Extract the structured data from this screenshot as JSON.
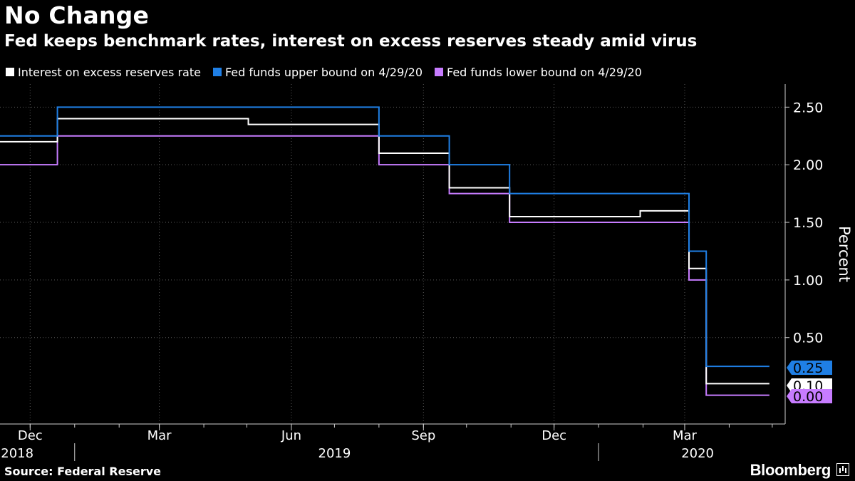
{
  "header": {
    "title": "No Change",
    "subtitle": "Fed keeps benchmark rates, interest on excess reserves steady amid virus"
  },
  "footer": {
    "source": "Source: Federal Reserve",
    "brand": "Bloomberg"
  },
  "chart_data": {
    "type": "line",
    "line_style": "step",
    "title": "No Change",
    "subtitle": "Fed keeps benchmark rates, interest on excess reserves steady amid virus",
    "ylabel": "Percent",
    "xlabel": "",
    "ylim": [
      -0.25,
      2.7
    ],
    "xlim": [
      "2018-11-10",
      "2020-05-10"
    ],
    "yticks": [
      0.5,
      1.0,
      1.5,
      2.0,
      2.5
    ],
    "ytick_labels": [
      "0.50",
      "1.00",
      "1.50",
      "2.00",
      "2.50"
    ],
    "month_ticks": [
      {
        "label": "Dec",
        "date": "2018-12-01"
      },
      {
        "label": "Mar",
        "date": "2019-03-01"
      },
      {
        "label": "Jun",
        "date": "2019-06-01"
      },
      {
        "label": "Sep",
        "date": "2019-09-01"
      },
      {
        "label": "Dec",
        "date": "2019-12-01"
      },
      {
        "label": "Mar",
        "date": "2020-03-01"
      }
    ],
    "year_labels": [
      {
        "label": "2018",
        "date": "2018-11-22"
      },
      {
        "label": "2019",
        "date": "2019-07-01"
      },
      {
        "label": "2020",
        "date": "2020-03-10"
      }
    ],
    "year_dividers": [
      "2019-01-01",
      "2020-01-01"
    ],
    "grid": true,
    "legend_position": "top-left",
    "series": [
      {
        "name": "Interest on excess reserves rate",
        "color": "#ffffff",
        "last_value_label": "0.10",
        "points": [
          {
            "x": "2018-11-10",
            "y": 2.2
          },
          {
            "x": "2018-12-20",
            "y": 2.4
          },
          {
            "x": "2019-05-02",
            "y": 2.35
          },
          {
            "x": "2019-08-01",
            "y": 2.1
          },
          {
            "x": "2019-09-19",
            "y": 1.8
          },
          {
            "x": "2019-10-31",
            "y": 1.55
          },
          {
            "x": "2020-01-30",
            "y": 1.6
          },
          {
            "x": "2020-03-04",
            "y": 1.1
          },
          {
            "x": "2020-03-16",
            "y": 0.1
          },
          {
            "x": "2020-04-29",
            "y": 0.1
          }
        ]
      },
      {
        "name": "Fed funds upper bound on 4/29/20",
        "color": "#1f7fe5",
        "last_value_label": "0.25",
        "points": [
          {
            "x": "2018-11-10",
            "y": 2.25
          },
          {
            "x": "2018-12-20",
            "y": 2.5
          },
          {
            "x": "2019-08-01",
            "y": 2.25
          },
          {
            "x": "2019-09-19",
            "y": 2.0
          },
          {
            "x": "2019-10-31",
            "y": 1.75
          },
          {
            "x": "2020-03-04",
            "y": 1.25
          },
          {
            "x": "2020-03-16",
            "y": 0.25
          },
          {
            "x": "2020-04-29",
            "y": 0.25
          }
        ]
      },
      {
        "name": "Fed funds lower bound on 4/29/20",
        "color": "#c77cff",
        "last_value_label": "0.00",
        "points": [
          {
            "x": "2018-11-10",
            "y": 2.0
          },
          {
            "x": "2018-12-20",
            "y": 2.25
          },
          {
            "x": "2019-08-01",
            "y": 2.0
          },
          {
            "x": "2019-09-19",
            "y": 1.75
          },
          {
            "x": "2019-10-31",
            "y": 1.5
          },
          {
            "x": "2020-03-04",
            "y": 1.0
          },
          {
            "x": "2020-03-16",
            "y": 0.0
          },
          {
            "x": "2020-04-29",
            "y": 0.0
          }
        ]
      }
    ]
  }
}
